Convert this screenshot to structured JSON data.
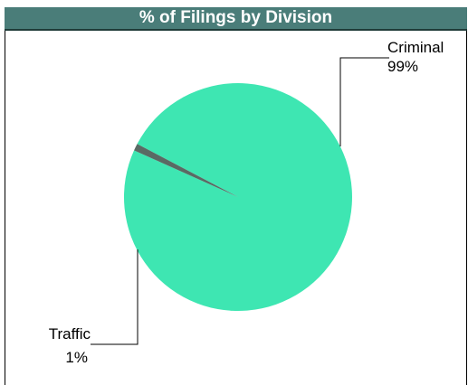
{
  "chart_data": {
    "type": "pie",
    "title": "% of Filings by Division",
    "slices": [
      {
        "name": "Criminal",
        "value": 99,
        "label": "99%",
        "color": "#3ee6b2"
      },
      {
        "name": "Traffic",
        "value": 1,
        "label": "1%",
        "color": "#5a6a64"
      }
    ],
    "legend": "none"
  }
}
